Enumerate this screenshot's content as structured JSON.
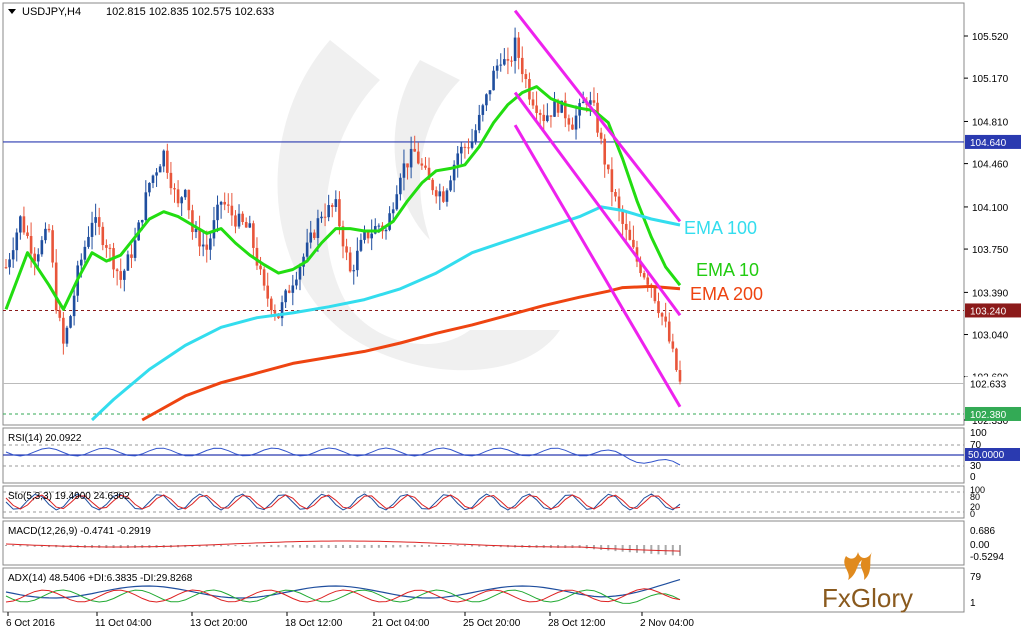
{
  "header": {
    "symbol": "USDJPY,H4",
    "ohlc": "102.815 102.835 102.575 102.633"
  },
  "colors": {
    "bull": "#1f4e9e",
    "bear": "#e8553a",
    "ema10": "#22dd11",
    "ema100": "#33ddee",
    "ema200": "#ee4411",
    "channel": "#ee22ee",
    "hline_blue": "#2a3ab0",
    "hline_red": "#8b1a1a",
    "hline_green": "#33aa55"
  },
  "annotations": {
    "ema100_label": "EMA 100",
    "ema10_label": "EMA 10",
    "ema200_label": "EMA 200"
  },
  "price_axis": {
    "ticks": [
      "105.520",
      "105.170",
      "104.810",
      "104.460",
      "104.100",
      "103.750",
      "103.390",
      "103.040",
      "102.690",
      "102.330"
    ],
    "tag_blue": "104.640",
    "tag_red": "103.240",
    "tag_current": "102.633",
    "tag_green": "102.380"
  },
  "rsi": {
    "label": "RSI(14) 20.0922",
    "ticks": [
      "100",
      "70",
      "30",
      "0"
    ],
    "tag": "50.0000"
  },
  "stoch": {
    "label": "Sto(5,3,3) 19.4900 24.6302",
    "ticks": [
      "100",
      "80",
      "20",
      "0"
    ]
  },
  "macd": {
    "label": "MACD(12,26,9) -0.4741 -0.2919",
    "ticks": [
      "0.686",
      "0.00",
      "-0.5294"
    ]
  },
  "adx": {
    "label": "ADX(14) 48.5406 +DI:6.3835 -DI:29.8268",
    "ticks": [
      "79",
      "1"
    ]
  },
  "time_axis": {
    "labels": [
      "6 Oct 2016",
      "11 Oct 04:00",
      "13 Oct 20:00",
      "18 Oct 12:00",
      "21 Oct 04:00",
      "25 Oct 20:00",
      "28 Oct 12:00",
      "2 Nov 04:00"
    ]
  },
  "logo": {
    "text": "FxGlory"
  },
  "chart_data": {
    "type": "line",
    "title": "USDJPY,H4 102.815 102.835 102.575 102.633",
    "x": [
      "6 Oct 2016",
      "11 Oct 04:00",
      "13 Oct 20:00",
      "18 Oct 12:00",
      "21 Oct 04:00",
      "25 Oct 20:00",
      "28 Oct 12:00",
      "2 Nov 04:00"
    ],
    "ylim": [
      102.33,
      105.6
    ],
    "price_path": [
      [
        0,
        103.6
      ],
      [
        4,
        104.0
      ],
      [
        8,
        103.7
      ],
      [
        12,
        103.9
      ],
      [
        14,
        103.3
      ],
      [
        16,
        102.95
      ],
      [
        18,
        103.2
      ],
      [
        20,
        103.55
      ],
      [
        24,
        104.0
      ],
      [
        28,
        103.8
      ],
      [
        32,
        103.5
      ],
      [
        36,
        103.8
      ],
      [
        40,
        104.3
      ],
      [
        44,
        104.55
      ],
      [
        48,
        104.1
      ],
      [
        50,
        104.3
      ],
      [
        52,
        103.9
      ],
      [
        56,
        103.75
      ],
      [
        60,
        104.15
      ],
      [
        64,
        104.0
      ],
      [
        68,
        103.9
      ],
      [
        72,
        103.4
      ],
      [
        76,
        103.2
      ],
      [
        80,
        103.5
      ],
      [
        84,
        103.75
      ],
      [
        88,
        104.05
      ],
      [
        92,
        104.1
      ],
      [
        96,
        103.55
      ],
      [
        100,
        103.85
      ],
      [
        104,
        103.95
      ],
      [
        106,
        103.9
      ],
      [
        110,
        104.4
      ],
      [
        114,
        104.55
      ],
      [
        118,
        104.3
      ],
      [
        122,
        104.2
      ],
      [
        126,
        104.55
      ],
      [
        130,
        104.65
      ],
      [
        134,
        105.0
      ],
      [
        136,
        105.2
      ],
      [
        138,
        105.35
      ],
      [
        140,
        105.25
      ],
      [
        142,
        105.45
      ],
      [
        146,
        105.05
      ],
      [
        150,
        104.85
      ],
      [
        154,
        104.95
      ],
      [
        158,
        104.8
      ],
      [
        162,
        105.0
      ],
      [
        164,
        104.9
      ],
      [
        168,
        104.35
      ],
      [
        172,
        103.95
      ],
      [
        176,
        103.65
      ],
      [
        180,
        103.45
      ],
      [
        184,
        103.1
      ],
      [
        188,
        102.63
      ]
    ],
    "series": [
      {
        "name": "EMA 10",
        "values": [
          [
            0,
            103.25
          ],
          [
            6,
            103.72
          ],
          [
            12,
            103.45
          ],
          [
            16,
            103.25
          ],
          [
            20,
            103.5
          ],
          [
            24,
            103.72
          ],
          [
            28,
            103.65
          ],
          [
            32,
            103.7
          ],
          [
            36,
            103.85
          ],
          [
            40,
            104.0
          ],
          [
            44,
            104.06
          ],
          [
            48,
            104.02
          ],
          [
            52,
            103.95
          ],
          [
            56,
            103.88
          ],
          [
            60,
            103.92
          ],
          [
            64,
            103.8
          ],
          [
            68,
            103.7
          ],
          [
            72,
            103.62
          ],
          [
            76,
            103.55
          ],
          [
            80,
            103.58
          ],
          [
            84,
            103.65
          ],
          [
            88,
            103.8
          ],
          [
            92,
            103.92
          ],
          [
            96,
            103.92
          ],
          [
            100,
            103.9
          ],
          [
            104,
            103.9
          ],
          [
            108,
            103.98
          ],
          [
            112,
            104.15
          ],
          [
            116,
            104.3
          ],
          [
            120,
            104.4
          ],
          [
            124,
            104.42
          ],
          [
            128,
            104.45
          ],
          [
            132,
            104.6
          ],
          [
            136,
            104.8
          ],
          [
            140,
            104.95
          ],
          [
            144,
            105.05
          ],
          [
            148,
            105.1
          ],
          [
            152,
            105.0
          ],
          [
            156,
            104.95
          ],
          [
            160,
            104.92
          ],
          [
            164,
            104.9
          ],
          [
            168,
            104.8
          ],
          [
            172,
            104.5
          ],
          [
            176,
            104.15
          ],
          [
            180,
            103.85
          ],
          [
            184,
            103.6
          ],
          [
            188,
            103.45
          ]
        ]
      },
      {
        "name": "EMA 100",
        "values": [
          [
            24,
            102.33
          ],
          [
            30,
            102.5
          ],
          [
            40,
            102.75
          ],
          [
            50,
            102.95
          ],
          [
            60,
            103.1
          ],
          [
            70,
            103.18
          ],
          [
            80,
            103.22
          ],
          [
            90,
            103.27
          ],
          [
            100,
            103.33
          ],
          [
            110,
            103.42
          ],
          [
            120,
            103.55
          ],
          [
            130,
            103.72
          ],
          [
            140,
            103.82
          ],
          [
            150,
            103.92
          ],
          [
            160,
            104.02
          ],
          [
            166,
            104.1
          ],
          [
            172,
            104.07
          ],
          [
            180,
            104.0
          ],
          [
            188,
            103.95
          ]
        ]
      },
      {
        "name": "EMA 200",
        "values": [
          [
            38,
            102.33
          ],
          [
            50,
            102.53
          ],
          [
            60,
            102.64
          ],
          [
            70,
            102.72
          ],
          [
            80,
            102.8
          ],
          [
            90,
            102.85
          ],
          [
            100,
            102.9
          ],
          [
            110,
            102.97
          ],
          [
            120,
            103.05
          ],
          [
            130,
            103.12
          ],
          [
            140,
            103.2
          ],
          [
            150,
            103.28
          ],
          [
            160,
            103.35
          ],
          [
            168,
            103.4
          ],
          [
            172,
            103.43
          ],
          [
            180,
            103.44
          ],
          [
            188,
            103.42
          ]
        ]
      }
    ],
    "horizontal_lines": [
      104.64,
      103.24,
      102.38
    ],
    "channel_lines": [
      [
        [
          142,
          105.73
        ],
        [
          188,
          103.98
        ]
      ],
      [
        [
          142,
          105.05
        ],
        [
          188,
          103.2
        ]
      ],
      [
        [
          142,
          104.78
        ],
        [
          188,
          102.44
        ]
      ]
    ],
    "current_price": 102.633
  }
}
